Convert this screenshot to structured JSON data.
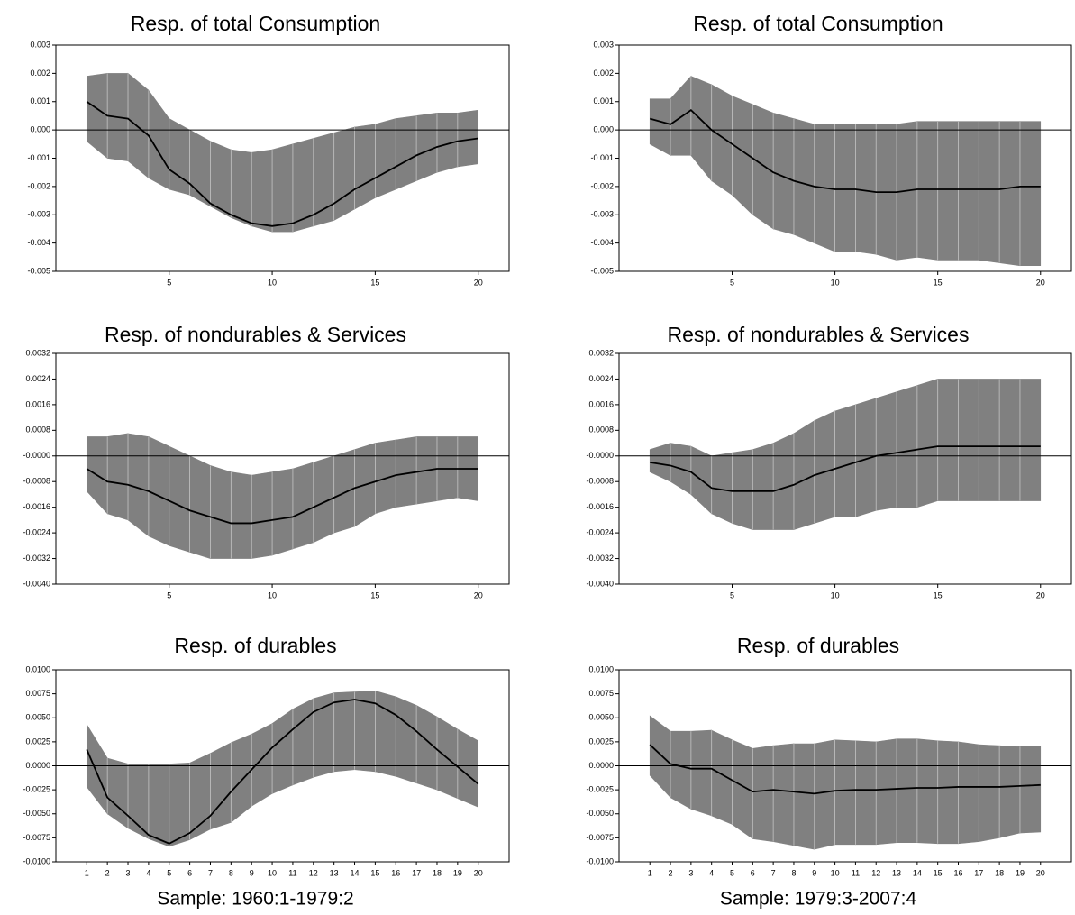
{
  "chart_data": [
    {
      "type": "line",
      "title": "Resp. of total Consumption",
      "x": [
        1,
        2,
        3,
        4,
        5,
        6,
        7,
        8,
        9,
        10,
        11,
        12,
        13,
        14,
        15,
        16,
        17,
        18,
        19,
        20
      ],
      "values": [
        0.001,
        0.0005,
        0.0004,
        -0.0002,
        -0.0014,
        -0.0019,
        -0.0026,
        -0.003,
        -0.0033,
        -0.0034,
        -0.0033,
        -0.003,
        -0.0026,
        -0.0021,
        -0.0017,
        -0.0013,
        -0.0009,
        -0.0006,
        -0.0004,
        -0.0003
      ],
      "upper": [
        0.0019,
        0.002,
        0.002,
        0.0014,
        0.0004,
        0.0,
        -0.0004,
        -0.0007,
        -0.0008,
        -0.0007,
        -0.0005,
        -0.0003,
        -0.0001,
        0.0001,
        0.0002,
        0.0004,
        0.0005,
        0.0006,
        0.0006,
        0.0007
      ],
      "lower": [
        -0.0004,
        -0.001,
        -0.0011,
        -0.0017,
        -0.0021,
        -0.0023,
        -0.0027,
        -0.0031,
        -0.0034,
        -0.0036,
        -0.0036,
        -0.0034,
        -0.0032,
        -0.0028,
        -0.0024,
        -0.0021,
        -0.0018,
        -0.0015,
        -0.0013,
        -0.0012
      ],
      "color": "#000000",
      "band_color": "#808080",
      "zero_line": true,
      "xlim": [
        -0.5,
        21.5
      ],
      "xticks": [
        5,
        10,
        15,
        20
      ],
      "ylim": [
        -0.005,
        0.003
      ],
      "yticks": [
        -0.005,
        -0.004,
        -0.003,
        -0.002,
        -0.001,
        {
          "value": 0,
          "label": "0.000"
        },
        0.001,
        0.002,
        0.003
      ]
    },
    {
      "type": "line",
      "title": "Resp. of total Consumption",
      "x": [
        1,
        2,
        3,
        4,
        5,
        6,
        7,
        8,
        9,
        10,
        11,
        12,
        13,
        14,
        15,
        16,
        17,
        18,
        19,
        20
      ],
      "values": [
        0.0004,
        0.0002,
        0.0007,
        0.0,
        -0.0005,
        -0.001,
        -0.0015,
        -0.0018,
        -0.002,
        -0.0021,
        -0.0021,
        -0.0022,
        -0.0022,
        -0.0021,
        -0.0021,
        -0.0021,
        -0.0021,
        -0.0021,
        -0.002,
        -0.002
      ],
      "upper": [
        0.0011,
        0.0011,
        0.0019,
        0.0016,
        0.0012,
        0.0009,
        0.0006,
        0.0004,
        0.0002,
        0.0002,
        0.0002,
        0.0002,
        0.0002,
        0.0003,
        0.0003,
        0.0003,
        0.0003,
        0.0003,
        0.0003,
        0.0003
      ],
      "lower": [
        -0.0005,
        -0.0009,
        -0.0009,
        -0.0018,
        -0.0023,
        -0.003,
        -0.0035,
        -0.0037,
        -0.004,
        -0.0043,
        -0.0043,
        -0.0044,
        -0.0046,
        -0.0045,
        -0.0046,
        -0.0046,
        -0.0046,
        -0.0047,
        -0.0048,
        -0.0048
      ],
      "color": "#000000",
      "band_color": "#808080",
      "zero_line": true,
      "xlim": [
        -0.5,
        21.5
      ],
      "xticks": [
        5,
        10,
        15,
        20
      ],
      "ylim": [
        -0.005,
        0.003
      ],
      "yticks": [
        -0.005,
        -0.004,
        -0.003,
        -0.002,
        -0.001,
        {
          "value": 0,
          "label": "0.000"
        },
        0.001,
        0.002,
        0.003
      ]
    },
    {
      "type": "line",
      "title": "Resp. of nondurables & Services",
      "x": [
        1,
        2,
        3,
        4,
        5,
        6,
        7,
        8,
        9,
        10,
        11,
        12,
        13,
        14,
        15,
        16,
        17,
        18,
        19,
        20
      ],
      "values": [
        -0.0004,
        -0.0008,
        -0.0009,
        -0.0011,
        -0.0014,
        -0.0017,
        -0.0019,
        -0.0021,
        -0.0021,
        -0.002,
        -0.0019,
        -0.0016,
        -0.0013,
        -0.001,
        -0.0008,
        -0.0006,
        -0.0005,
        -0.0004,
        -0.0004,
        -0.0004
      ],
      "upper": [
        0.0006,
        0.0006,
        0.0007,
        0.0006,
        0.0003,
        0.0,
        -0.0003,
        -0.0005,
        -0.0006,
        -0.0005,
        -0.0004,
        -0.0002,
        0.0,
        0.0002,
        0.0004,
        0.0005,
        0.0006,
        0.0006,
        0.0006,
        0.0006
      ],
      "lower": [
        -0.0011,
        -0.0018,
        -0.002,
        -0.0025,
        -0.0028,
        -0.003,
        -0.0032,
        -0.0032,
        -0.0032,
        -0.0031,
        -0.0029,
        -0.0027,
        -0.0024,
        -0.0022,
        -0.0018,
        -0.0016,
        -0.0015,
        -0.0014,
        -0.0013,
        -0.0014
      ],
      "color": "#000000",
      "band_color": "#808080",
      "zero_line": true,
      "xlim": [
        -0.5,
        21.5
      ],
      "xticks": [
        5,
        10,
        15,
        20
      ],
      "ylim": [
        -0.004,
        0.0032
      ],
      "yticks": [
        {
          "value": -0.004,
          "label": "-0.0040"
        },
        -0.0032,
        -0.0024,
        -0.0016,
        -0.0008,
        {
          "value": 0,
          "label": "-0.0000"
        },
        0.0008,
        0.0016,
        0.0024,
        0.0032
      ]
    },
    {
      "type": "line",
      "title": "Resp. of nondurables & Services",
      "x": [
        1,
        2,
        3,
        4,
        5,
        6,
        7,
        8,
        9,
        10,
        11,
        12,
        13,
        14,
        15,
        16,
        17,
        18,
        19,
        20
      ],
      "values": [
        -0.0002,
        -0.0003,
        -0.0005,
        -0.001,
        -0.0011,
        -0.0011,
        -0.0011,
        -0.0009,
        -0.0006,
        -0.0004,
        -0.0002,
        0.0,
        0.0001,
        0.0002,
        0.0003,
        0.0003,
        0.0003,
        0.0003,
        0.0003,
        0.0003
      ],
      "upper": [
        0.0002,
        0.0004,
        0.0003,
        0.0,
        0.0001,
        0.0002,
        0.0004,
        0.0007,
        0.0011,
        0.0014,
        0.0016,
        0.0018,
        0.002,
        0.0022,
        0.0024,
        0.0024,
        0.0024,
        0.0024,
        0.0024,
        0.0024
      ],
      "lower": [
        -0.0005,
        -0.0008,
        -0.0012,
        -0.0018,
        -0.0021,
        -0.0023,
        -0.0023,
        -0.0023,
        -0.0021,
        -0.0019,
        -0.0019,
        -0.0017,
        -0.0016,
        -0.0016,
        -0.0014,
        -0.0014,
        -0.0014,
        -0.0014,
        -0.0014,
        -0.0014
      ],
      "color": "#000000",
      "band_color": "#808080",
      "zero_line": true,
      "xlim": [
        -0.5,
        21.5
      ],
      "xticks": [
        5,
        10,
        15,
        20
      ],
      "ylim": [
        -0.004,
        0.0032
      ],
      "yticks": [
        {
          "value": -0.004,
          "label": "-0.0040"
        },
        -0.0032,
        -0.0024,
        -0.0016,
        -0.0008,
        {
          "value": 0,
          "label": "-0.0000"
        },
        0.0008,
        0.0016,
        0.0024,
        0.0032
      ]
    },
    {
      "type": "line",
      "title": "Resp. of durables",
      "xlabel": "Sample: 1960:1-1979:2",
      "x": [
        1,
        2,
        3,
        4,
        5,
        6,
        7,
        8,
        9,
        10,
        11,
        12,
        13,
        14,
        15,
        16,
        17,
        18,
        19,
        20
      ],
      "values": [
        0.0017,
        -0.0033,
        -0.0052,
        -0.0072,
        -0.0081,
        -0.007,
        -0.0052,
        -0.0027,
        -0.0004,
        0.0019,
        0.0038,
        0.0056,
        0.0066,
        0.0069,
        0.0065,
        0.0053,
        0.0036,
        0.0017,
        -0.0001,
        -0.0019
      ],
      "upper": [
        0.0043,
        0.0008,
        0.0002,
        0.0002,
        0.0002,
        0.0003,
        0.0013,
        0.0024,
        0.0033,
        0.0044,
        0.0059,
        0.007,
        0.0076,
        0.0077,
        0.0078,
        0.0072,
        0.0063,
        0.0051,
        0.0038,
        0.0026
      ],
      "lower": [
        -0.0022,
        -0.005,
        -0.0065,
        -0.0076,
        -0.0084,
        -0.0077,
        -0.0066,
        -0.0059,
        -0.0042,
        -0.0029,
        -0.002,
        -0.0012,
        -0.0006,
        -0.0004,
        -0.0006,
        -0.0011,
        -0.0018,
        -0.0025,
        -0.0034,
        -0.0043
      ],
      "color": "#000000",
      "band_color": "#808080",
      "zero_line": true,
      "xlim": [
        -0.5,
        21.5
      ],
      "xticks": [
        1,
        2,
        3,
        4,
        5,
        6,
        7,
        8,
        9,
        10,
        11,
        12,
        13,
        14,
        15,
        16,
        17,
        18,
        19,
        20
      ],
      "ylim": [
        -0.01,
        0.01
      ],
      "yticks": [
        {
          "value": -0.01,
          "label": "-0.0100"
        },
        -0.0075,
        {
          "value": -0.005,
          "label": "-0.0050"
        },
        -0.0025,
        {
          "value": 0,
          "label": "0.0000"
        },
        0.0025,
        {
          "value": 0.005,
          "label": "0.0050"
        },
        0.0075,
        {
          "value": 0.01,
          "label": "0.0100"
        }
      ]
    },
    {
      "type": "line",
      "title": "Resp. of durables",
      "xlabel": "Sample: 1979:3-2007:4",
      "x": [
        1,
        2,
        3,
        4,
        5,
        6,
        7,
        8,
        9,
        10,
        11,
        12,
        13,
        14,
        15,
        16,
        17,
        18,
        19,
        20
      ],
      "values": [
        0.0022,
        0.0002,
        -0.0003,
        -0.0003,
        -0.0015,
        -0.0027,
        -0.0025,
        -0.0027,
        -0.0029,
        -0.0026,
        -0.0025,
        -0.0025,
        -0.0024,
        -0.0023,
        -0.0023,
        -0.0022,
        -0.0022,
        -0.0022,
        -0.0021,
        -0.002
      ],
      "upper": [
        0.0052,
        0.0036,
        0.0036,
        0.0037,
        0.0027,
        0.0018,
        0.0021,
        0.0023,
        0.0023,
        0.0027,
        0.0026,
        0.0025,
        0.0028,
        0.0028,
        0.0026,
        0.0025,
        0.0022,
        0.0021,
        0.002,
        0.002
      ],
      "lower": [
        -0.001,
        -0.0033,
        -0.0045,
        -0.0052,
        -0.0061,
        -0.0076,
        -0.0079,
        -0.0083,
        -0.0087,
        -0.0082,
        -0.0082,
        -0.0082,
        -0.008,
        -0.008,
        -0.0081,
        -0.0081,
        -0.0079,
        -0.0075,
        -0.007,
        -0.0069
      ],
      "color": "#000000",
      "band_color": "#808080",
      "zero_line": true,
      "xlim": [
        -0.5,
        21.5
      ],
      "xticks": [
        1,
        2,
        3,
        4,
        5,
        6,
        7,
        8,
        9,
        10,
        11,
        12,
        13,
        14,
        15,
        16,
        17,
        18,
        19,
        20
      ],
      "ylim": [
        -0.01,
        0.01
      ],
      "yticks": [
        {
          "value": -0.01,
          "label": "-0.0100"
        },
        -0.0075,
        {
          "value": -0.005,
          "label": "-0.0050"
        },
        -0.0025,
        {
          "value": 0,
          "label": "0.0000"
        },
        0.0025,
        {
          "value": 0.005,
          "label": "0.0050"
        },
        0.0075,
        {
          "value": 0.01,
          "label": "0.0100"
        }
      ]
    }
  ]
}
